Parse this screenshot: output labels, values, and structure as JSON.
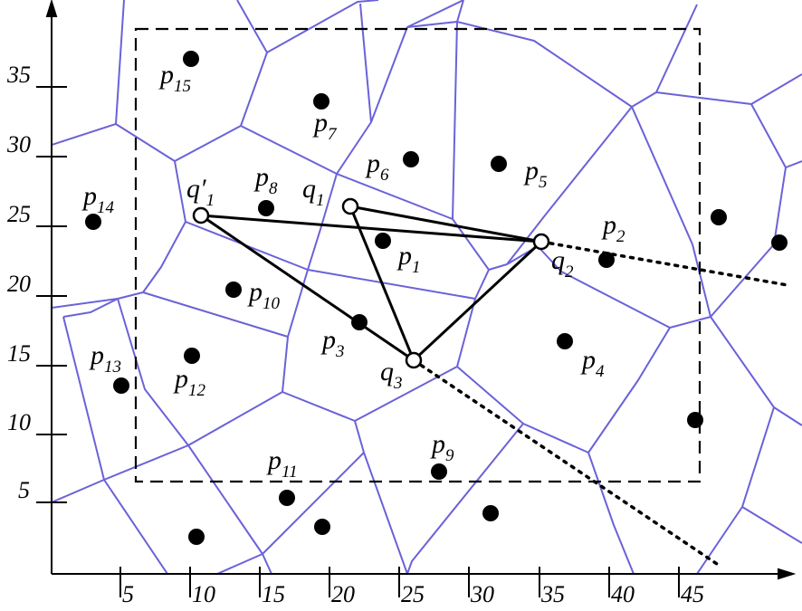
{
  "axes": {
    "x_ticks": [
      "5",
      "10",
      "15",
      "20",
      "25",
      "30",
      "35",
      "40",
      "45"
    ],
    "y_ticks": [
      "5",
      "10",
      "15",
      "20",
      "25",
      "30",
      "35"
    ]
  },
  "points": [
    {
      "id": "p1",
      "label": "p",
      "sub": "1"
    },
    {
      "id": "p2",
      "label": "p",
      "sub": "2"
    },
    {
      "id": "p3",
      "label": "p",
      "sub": "3"
    },
    {
      "id": "p4",
      "label": "p",
      "sub": "4"
    },
    {
      "id": "p5",
      "label": "p",
      "sub": "5"
    },
    {
      "id": "p6",
      "label": "p",
      "sub": "6"
    },
    {
      "id": "p7",
      "label": "p",
      "sub": "7"
    },
    {
      "id": "p8",
      "label": "p",
      "sub": "8"
    },
    {
      "id": "p9",
      "label": "p",
      "sub": "9"
    },
    {
      "id": "p10",
      "label": "p",
      "sub": "10"
    },
    {
      "id": "p11",
      "label": "p",
      "sub": "11"
    },
    {
      "id": "p12",
      "label": "p",
      "sub": "12"
    },
    {
      "id": "p13",
      "label": "p",
      "sub": "13"
    },
    {
      "id": "p14",
      "label": "p",
      "sub": "14"
    },
    {
      "id": "p15",
      "label": "p",
      "sub": "15"
    }
  ],
  "queries": [
    {
      "id": "q1",
      "label": "q",
      "sub": "1"
    },
    {
      "id": "q1p",
      "label": "q′",
      "sub": "1"
    },
    {
      "id": "q2",
      "label": "q",
      "sub": "2"
    },
    {
      "id": "q3",
      "label": "q",
      "sub": "3"
    }
  ],
  "colors": {
    "voronoi_edge": "#6a62d8",
    "point_fill": "#000000",
    "query_fill": "#ffffff",
    "line": "#000000"
  }
}
